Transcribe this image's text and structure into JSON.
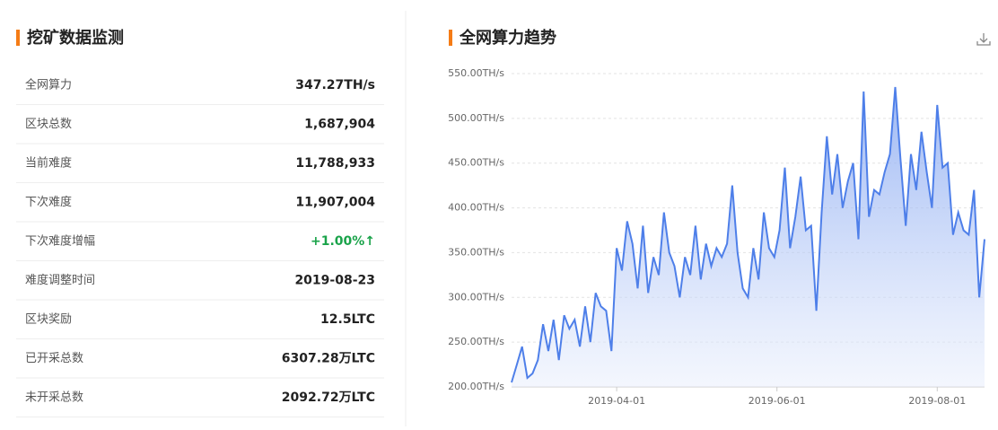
{
  "panel": {
    "title": "挖矿数据监测",
    "rows": [
      [
        "全网算力",
        "347.27TH/s"
      ],
      [
        "区块总数",
        "1,687,904"
      ],
      [
        "当前难度",
        "11,788,933"
      ],
      [
        "下次难度",
        "11,907,004"
      ],
      [
        "下次难度增幅",
        "+1.00%↑"
      ],
      [
        "难度调整时间",
        "2019-08-23"
      ],
      [
        "区块奖励",
        "12.5LTC"
      ],
      [
        "已开采总数",
        "6307.28万LTC"
      ],
      [
        "未开采总数",
        "2092.72万LTC"
      ]
    ]
  },
  "chart_data": {
    "type": "area",
    "title": "全网算力趋势",
    "color": "#4e7fe9",
    "x": [
      "2019-02-20",
      "2019-02-22",
      "2019-02-24",
      "2019-02-26",
      "2019-02-28",
      "2019-03-02",
      "2019-03-04",
      "2019-03-06",
      "2019-03-08",
      "2019-03-10",
      "2019-03-12",
      "2019-03-14",
      "2019-03-16",
      "2019-03-18",
      "2019-03-20",
      "2019-03-22",
      "2019-03-24",
      "2019-03-26",
      "2019-03-28",
      "2019-03-30",
      "2019-04-01",
      "2019-04-03",
      "2019-04-05",
      "2019-04-07",
      "2019-04-09",
      "2019-04-11",
      "2019-04-13",
      "2019-04-15",
      "2019-04-17",
      "2019-04-19",
      "2019-04-21",
      "2019-04-23",
      "2019-04-25",
      "2019-04-27",
      "2019-04-29",
      "2019-05-01",
      "2019-05-03",
      "2019-05-05",
      "2019-05-07",
      "2019-05-09",
      "2019-05-11",
      "2019-05-13",
      "2019-05-15",
      "2019-05-17",
      "2019-05-19",
      "2019-05-21",
      "2019-05-23",
      "2019-05-25",
      "2019-05-27",
      "2019-05-29",
      "2019-05-31",
      "2019-06-02",
      "2019-06-04",
      "2019-06-06",
      "2019-06-08",
      "2019-06-10",
      "2019-06-12",
      "2019-06-14",
      "2019-06-16",
      "2019-06-18",
      "2019-06-20",
      "2019-06-22",
      "2019-06-24",
      "2019-06-26",
      "2019-06-28",
      "2019-06-30",
      "2019-07-02",
      "2019-07-04",
      "2019-07-06",
      "2019-07-08",
      "2019-07-10",
      "2019-07-12",
      "2019-07-14",
      "2019-07-16",
      "2019-07-18",
      "2019-07-20",
      "2019-07-22",
      "2019-07-24",
      "2019-07-26",
      "2019-07-28",
      "2019-07-30",
      "2019-08-01",
      "2019-08-03",
      "2019-08-05",
      "2019-08-07",
      "2019-08-09",
      "2019-08-11",
      "2019-08-13",
      "2019-08-15",
      "2019-08-17",
      "2019-08-19"
    ],
    "values": [
      205,
      225,
      245,
      210,
      215,
      230,
      270,
      240,
      275,
      230,
      280,
      265,
      275,
      245,
      290,
      250,
      305,
      290,
      285,
      240,
      355,
      330,
      385,
      360,
      310,
      380,
      305,
      345,
      325,
      395,
      350,
      335,
      300,
      345,
      325,
      380,
      320,
      360,
      335,
      355,
      345,
      360,
      425,
      350,
      310,
      300,
      355,
      320,
      395,
      355,
      345,
      375,
      445,
      355,
      390,
      435,
      375,
      380,
      285,
      395,
      480,
      415,
      460,
      400,
      430,
      450,
      365,
      530,
      390,
      420,
      415,
      440,
      460,
      535,
      455,
      380,
      460,
      420,
      485,
      440,
      400,
      515,
      445,
      450,
      370,
      395,
      375,
      370,
      420,
      300,
      365
    ],
    "xlim": [
      "2019-02-20",
      "2019-08-19"
    ],
    "xticks": [
      "2019-04-01",
      "2019-06-01",
      "2019-08-01"
    ],
    "ylim": [
      200,
      550
    ],
    "yticks": [
      {
        "value": 200,
        "label": "200.00TH/s"
      },
      {
        "value": 250,
        "label": "250.00TH/s"
      },
      {
        "value": 300,
        "label": "300.00TH/s"
      },
      {
        "value": 350,
        "label": "350.00TH/s"
      },
      {
        "value": 400,
        "label": "400.00TH/s"
      },
      {
        "value": 450,
        "label": "450.00TH/s"
      },
      {
        "value": 500,
        "label": "500.00TH/s"
      },
      {
        "value": 550,
        "label": "550.00TH/s"
      }
    ],
    "grid": true
  }
}
